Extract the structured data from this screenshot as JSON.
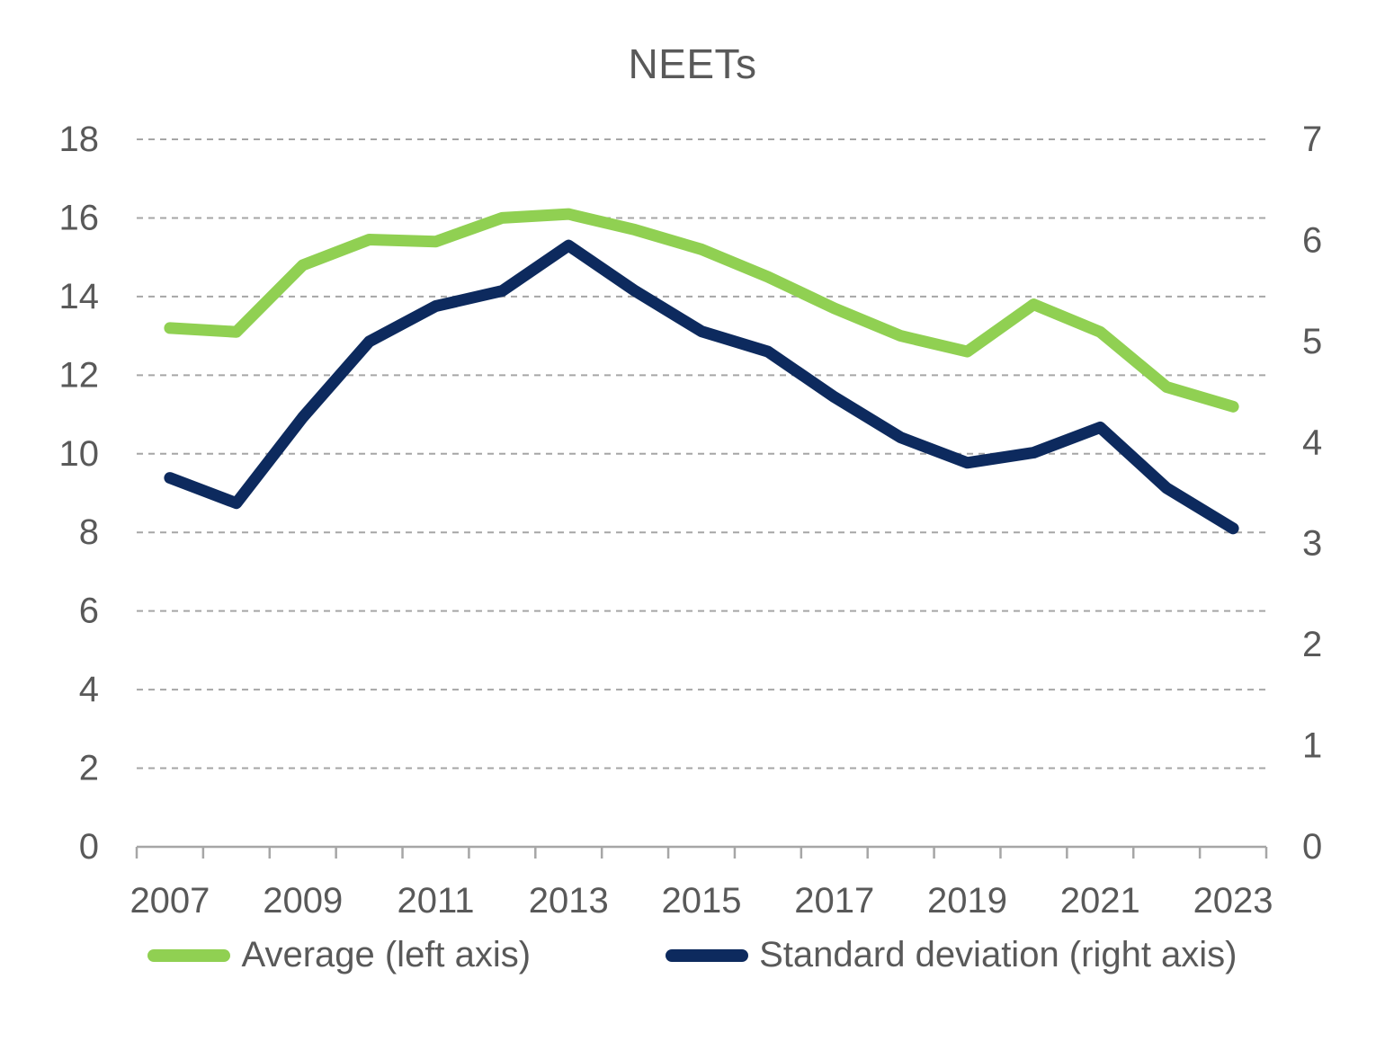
{
  "chart_data": {
    "type": "line",
    "title": "NEETs",
    "categories": [
      2007,
      2008,
      2009,
      2010,
      2011,
      2012,
      2013,
      2014,
      2015,
      2016,
      2017,
      2018,
      2019,
      2020,
      2021,
      2022,
      2023
    ],
    "x_tick_labels": [
      "2007",
      "2009",
      "2011",
      "2013",
      "2015",
      "2017",
      "2019",
      "2021",
      "2023"
    ],
    "series": [
      {
        "name": "Average (left axis)",
        "axis": "left",
        "color": "#90D052",
        "values": [
          13.2,
          13.1,
          14.8,
          15.45,
          15.4,
          16.0,
          16.1,
          15.7,
          15.2,
          14.5,
          13.7,
          13.0,
          12.6,
          13.8,
          13.1,
          11.7,
          11.2
        ]
      },
      {
        "name": "Standard deviation (right axis)",
        "axis": "right",
        "color": "#0D2A5E",
        "values": [
          3.65,
          3.4,
          4.25,
          5.0,
          5.35,
          5.5,
          5.95,
          5.5,
          5.1,
          4.9,
          4.45,
          4.05,
          3.8,
          3.9,
          4.15,
          3.55,
          3.15
        ]
      }
    ],
    "left_axis": {
      "min": 0,
      "max": 18,
      "step": 2,
      "tick_labels": [
        "0",
        "2",
        "4",
        "6",
        "8",
        "10",
        "12",
        "14",
        "16",
        "18"
      ]
    },
    "right_axis": {
      "min": 0,
      "max": 7,
      "step": 1,
      "tick_labels": [
        "0",
        "1",
        "2",
        "3",
        "4",
        "5",
        "6",
        "7"
      ]
    },
    "grid": "horizontal-dashed",
    "legend_position": "bottom",
    "colors": {
      "text": "#595959",
      "axis": "#a6a6a6",
      "gridline": "#a6a6a6",
      "background": "#ffffff"
    }
  }
}
